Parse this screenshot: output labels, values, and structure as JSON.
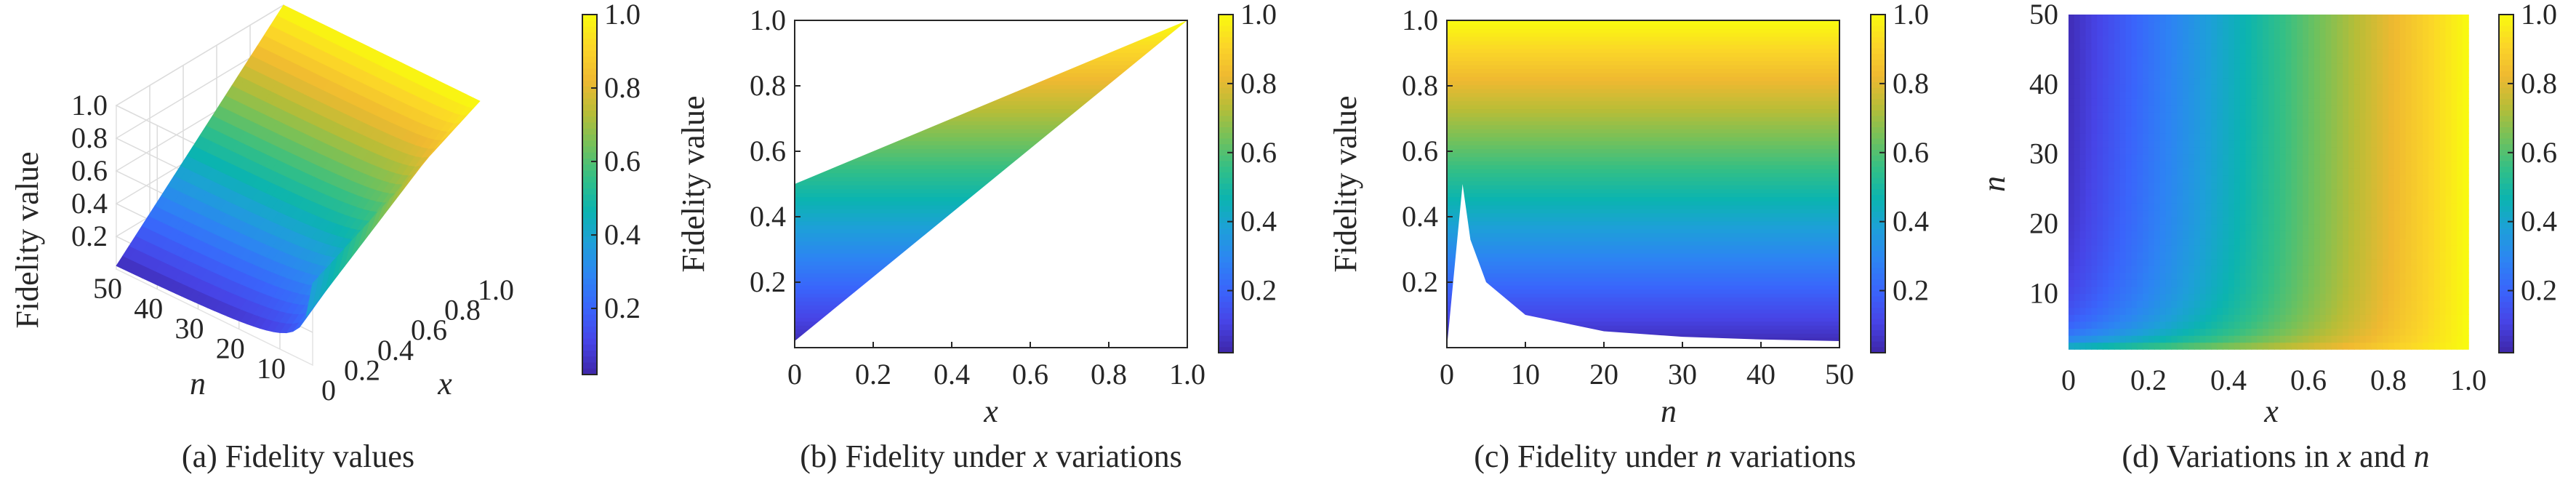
{
  "colormap": {
    "name": "parula",
    "stops": [
      "#3e26a8",
      "#4744e6",
      "#3a64fb",
      "#2d84f3",
      "#1e9fd9",
      "#0bb4b0",
      "#33bf86",
      "#74c15a",
      "#b8bd37",
      "#efb931",
      "#fbd628",
      "#f9fb0e"
    ]
  },
  "chart_data": [
    {
      "panel": "a",
      "type": "surface",
      "caption": "(a) Fidelity values",
      "caption_prefix": "(a) Fidelity values",
      "zlabel": "Fidelity value",
      "xlabel": "x",
      "ylabel": "n",
      "x_ticks": [
        "0",
        "0.2",
        "0.4",
        "0.6",
        "0.8",
        "1.0"
      ],
      "n_ticks": [
        "10",
        "20",
        "30",
        "40",
        "50"
      ],
      "z_ticks": [
        "0.2",
        "0.4",
        "0.6",
        "0.8",
        "1.0"
      ],
      "x_range": [
        0,
        1
      ],
      "n_range": [
        2,
        50
      ],
      "z_range": [
        0,
        1
      ],
      "colorbar_ticks": [
        "0.2",
        "0.4",
        "0.6",
        "0.8",
        "1.0"
      ],
      "grid": true
    },
    {
      "panel": "b",
      "type": "area",
      "caption_prefix": "(b) Fidelity under ",
      "caption_var": "x",
      "caption_suffix": " variations",
      "xlabel": "x",
      "ylabel": "Fidelity value",
      "x_ticks": [
        "0",
        "0.2",
        "0.4",
        "0.6",
        "0.8",
        "1.0"
      ],
      "y_ticks": [
        "0.2",
        "0.4",
        "0.6",
        "0.8",
        "1.0"
      ],
      "xlim": [
        0,
        1
      ],
      "ylim": [
        0,
        1
      ],
      "upper_boundary": [
        {
          "x": 0,
          "y": 0.5
        },
        {
          "x": 1,
          "y": 1.0
        }
      ],
      "lower_boundary": [
        {
          "x": 0,
          "y": 0.02
        },
        {
          "x": 1,
          "y": 1.0
        }
      ],
      "colorbar_ticks": [
        "0.2",
        "0.4",
        "0.6",
        "0.8",
        "1.0"
      ],
      "grid": true
    },
    {
      "panel": "c",
      "type": "area",
      "caption_prefix": "(c) Fidelity under ",
      "caption_var": "n",
      "caption_suffix": " variations",
      "xlabel": "n",
      "ylabel": "Fidelity value",
      "x_ticks": [
        "0",
        "10",
        "20",
        "30",
        "40",
        "50"
      ],
      "y_ticks": [
        "0.2",
        "0.4",
        "0.6",
        "0.8",
        "1.0"
      ],
      "xlim": [
        0,
        50
      ],
      "ylim": [
        0,
        1
      ],
      "upper_value": 1.0,
      "lower_boundary": [
        {
          "n": 2,
          "y": 0.5
        },
        {
          "n": 3,
          "y": 0.33
        },
        {
          "n": 5,
          "y": 0.2
        },
        {
          "n": 10,
          "y": 0.1
        },
        {
          "n": 20,
          "y": 0.05
        },
        {
          "n": 30,
          "y": 0.033
        },
        {
          "n": 40,
          "y": 0.025
        },
        {
          "n": 50,
          "y": 0.02
        }
      ],
      "colorbar_ticks": [
        "0.2",
        "0.4",
        "0.6",
        "0.8",
        "1.0"
      ],
      "grid": false
    },
    {
      "panel": "d",
      "type": "heatmap",
      "caption_prefix": "(d) Variations in ",
      "caption_var": "x",
      "caption_mid": " and ",
      "caption_var2": "n",
      "xlabel": "x",
      "ylabel": "n",
      "x_ticks": [
        "0",
        "0.2",
        "0.4",
        "0.6",
        "0.8",
        "1.0"
      ],
      "y_ticks": [
        "10",
        "20",
        "30",
        "40",
        "50"
      ],
      "xlim": [
        0,
        1
      ],
      "ylim": [
        2,
        50
      ],
      "colorbar_ticks": [
        "0.2",
        "0.4",
        "0.6",
        "0.8",
        "1.0"
      ],
      "grid": false
    }
  ]
}
